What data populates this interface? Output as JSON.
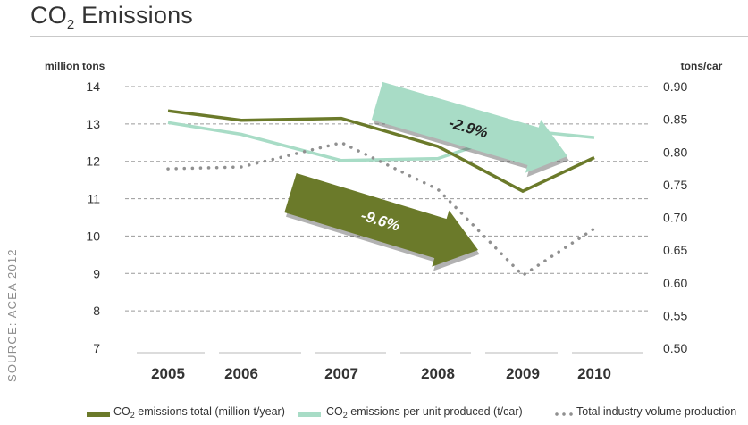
{
  "title": {
    "main": "CO",
    "sub": "2",
    "rest": " Emissions"
  },
  "source": "SOURCE: ACEA 2012",
  "chart_data": {
    "type": "line",
    "x": [
      "2005",
      "2006",
      "2007",
      "2008",
      "2009",
      "2010"
    ],
    "y_left": {
      "label": "million tons",
      "range": [
        7,
        14
      ],
      "ticks": [
        "14",
        "13",
        "12",
        "11",
        "10",
        "9",
        "8",
        "7"
      ]
    },
    "y_right": {
      "label": "tons/car",
      "range": [
        0.5,
        0.9
      ],
      "ticks": [
        "0.90",
        "0.85",
        "0.80",
        "0.75",
        "0.70",
        "0.65",
        "0.60",
        "0.55",
        "0.50"
      ]
    },
    "grid": "horizontal dashed",
    "series": [
      {
        "name": "CO2 emissions total (million t/year)",
        "axis": "left",
        "style": "solid",
        "color": "#6b7a2a",
        "values": [
          13.35,
          13.1,
          13.15,
          12.4,
          11.2,
          12.1
        ]
      },
      {
        "name": "CO2 emissions per unit produced (t/car)",
        "axis": "right",
        "style": "solid",
        "color": "#a8dcc6",
        "values": [
          0.845,
          0.827,
          0.787,
          0.79,
          0.833,
          0.822
        ]
      },
      {
        "name": "Total industry volume production",
        "axis": "left",
        "style": "dotted",
        "color": "#909090",
        "values": [
          11.8,
          11.85,
          12.5,
          11.25,
          8.95,
          10.2
        ]
      }
    ],
    "annotations": [
      {
        "text": "-2.9%",
        "color": "#a8dcc6"
      },
      {
        "text": "-9.6%",
        "color": "#6b7a2a"
      }
    ]
  },
  "legend": [
    {
      "prefix": "CO",
      "sub": "2",
      "rest": " emissions total (million t/year)",
      "color": "#6b7a2a",
      "style": "solid"
    },
    {
      "prefix": "CO",
      "sub": "2",
      "rest": " emissions per unit produced (t/car)",
      "color": "#a8dcc6",
      "style": "solid"
    },
    {
      "prefix": "",
      "sub": "",
      "rest": "Total industry volume production",
      "color": "#909090",
      "style": "dotted"
    }
  ]
}
